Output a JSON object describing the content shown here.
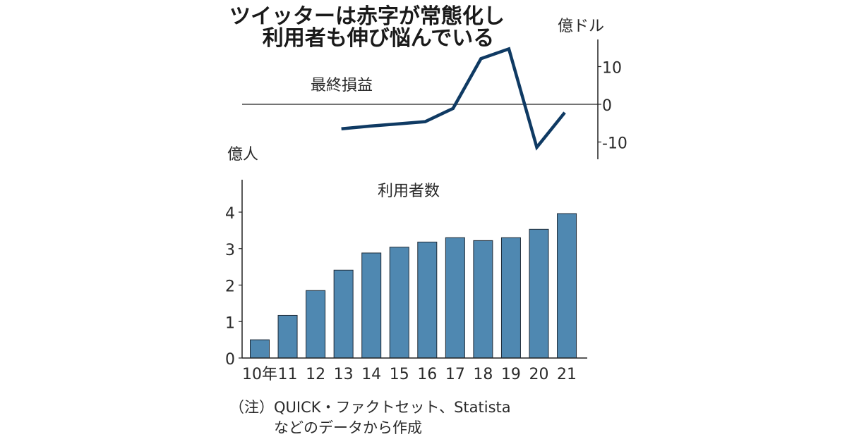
{
  "title_lines": [
    "ツイッターは赤字が常態化し",
    "利用者も伸び悩んでいる"
  ],
  "note_lines": [
    "（注）QUICK・ファクトセット、Statista",
    "などのデータから作成"
  ],
  "colors": {
    "line": "#0f3a63",
    "bar": "#4f88b1",
    "bar_edge": "#1e2a36",
    "axis": "#222222"
  },
  "chart_data": [
    {
      "type": "line",
      "title": "最終損益",
      "unit_label": "億ドル",
      "axis_position": "right",
      "ylim": [
        -13,
        17
      ],
      "yticks": [
        10,
        0,
        -10
      ],
      "ytick_labels": [
        "10",
        "0",
        "-10"
      ],
      "zero_line": true,
      "x": [
        "13",
        "14",
        "15",
        "16",
        "17",
        "18",
        "19",
        "20",
        "21"
      ],
      "values": [
        -6.5,
        -5.8,
        -5.2,
        -4.6,
        -1.1,
        12.1,
        14.7,
        -11.4,
        -2.2
      ]
    },
    {
      "type": "bar",
      "title": "利用者数",
      "unit_label": "億人",
      "ylim": [
        0,
        4.9
      ],
      "yticks": [
        0,
        1,
        2,
        3,
        4
      ],
      "ytick_labels": [
        "0",
        "1",
        "2",
        "3",
        "4"
      ],
      "categories": [
        "10年",
        "11",
        "12",
        "13",
        "14",
        "15",
        "16",
        "17",
        "18",
        "19",
        "20",
        "21"
      ],
      "values": [
        0.5,
        1.17,
        1.85,
        2.41,
        2.88,
        3.04,
        3.18,
        3.3,
        3.22,
        3.3,
        3.53,
        3.96
      ]
    }
  ]
}
